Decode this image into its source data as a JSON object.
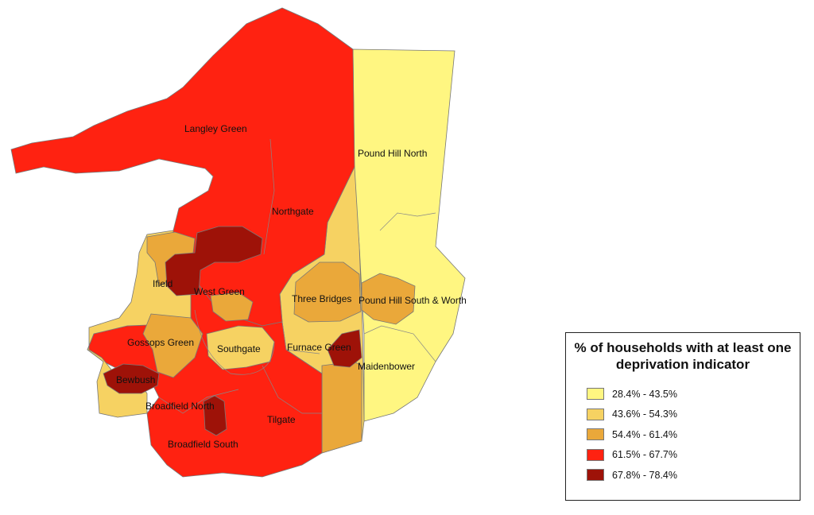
{
  "legend": {
    "title": "% of households with at least one deprivation indicator",
    "classes": [
      {
        "label": "28.4% - 43.5%",
        "color": "#fff681"
      },
      {
        "label": "43.6% - 54.3%",
        "color": "#f6d262"
      },
      {
        "label": "54.4% - 61.4%",
        "color": "#eaa83a"
      },
      {
        "label": "61.5% - 67.7%",
        "color": "#ff2211"
      },
      {
        "label": "67.8% - 78.4%",
        "color": "#9e1208"
      }
    ]
  },
  "wards": [
    {
      "name": "Langley Green",
      "class": 3
    },
    {
      "name": "Pound Hill North",
      "class": 0
    },
    {
      "name": "Northgate",
      "class": 3
    },
    {
      "name": "Ifield",
      "class": 2
    },
    {
      "name": "West Green",
      "class": 3
    },
    {
      "name": "Three Bridges",
      "class": 1
    },
    {
      "name": "Pound Hill South & Worth",
      "class": 0
    },
    {
      "name": "Gossops Green",
      "class": 3
    },
    {
      "name": "Southgate",
      "class": 1
    },
    {
      "name": "Furnace Green",
      "class": 1
    },
    {
      "name": "Maidenbower",
      "class": 0
    },
    {
      "name": "Bewbush",
      "class": 3
    },
    {
      "name": "Broadfield North",
      "class": 3
    },
    {
      "name": "Tilgate",
      "class": 3
    },
    {
      "name": "Broadfield South",
      "class": 3
    }
  ]
}
